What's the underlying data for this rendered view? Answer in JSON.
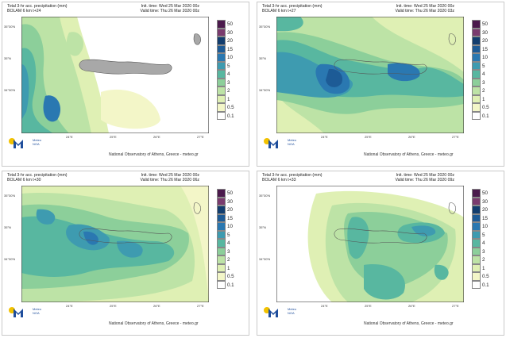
{
  "legend": {
    "levels": [
      "50",
      "30",
      "20",
      "15",
      "10",
      "5",
      "4",
      "3",
      "2",
      "1",
      "0.5",
      "0.1"
    ],
    "colors": [
      "#4b1a4c",
      "#7a3b6e",
      "#123d6e",
      "#1d5b96",
      "#2a78b1",
      "#3e9bb0",
      "#58b7a0",
      "#8ccf9a",
      "#bde3a6",
      "#dff0b4",
      "#f3f6c8",
      "#ffffff"
    ]
  },
  "axes": {
    "lat_labels": [
      "35°30'N",
      "35°N",
      "34°30'N"
    ],
    "lon_labels": [
      "24°E",
      "25°E",
      "26°E",
      "27°E"
    ]
  },
  "logo": {
    "line1": "Meteo",
    "line2": "NOA"
  },
  "credit": "National Observatory of Athens, Greece - meteo.gr",
  "panels": [
    {
      "title": "Total 3-hr acc. precipitation (mm)",
      "model": "BOLAM 6 km t+24",
      "init": "Init. time: Wed 25 Mar 2020 00z",
      "valid": "Valid time: Thu 26 Mar 2020 00z"
    },
    {
      "title": "Total 3-hr acc. precipitation (mm)",
      "model": "BOLAM 6 km t+27",
      "init": "Init. time: Wed 25 Mar 2020 00z",
      "valid": "Valid time: Thu 26 Mar 2020 03z"
    },
    {
      "title": "Total 3-hr acc. precipitation (mm)",
      "model": "BOLAM 6 km t+30",
      "init": "Init. time: Wed 25 Mar 2020 00z",
      "valid": "Valid time: Thu 26 Mar 2020 06z"
    },
    {
      "title": "Total 3-hr acc. precipitation (mm)",
      "model": "BOLAM 6 km t+33",
      "init": "Init. time: Wed 25 Mar 2020 00z",
      "valid": "Valid time: Thu 26 Mar 2020 09z"
    }
  ]
}
